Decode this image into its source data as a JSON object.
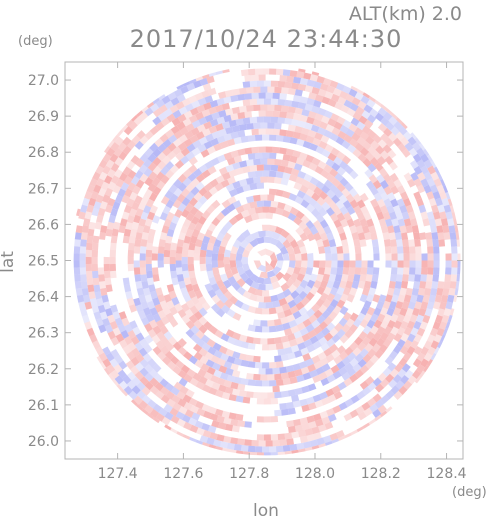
{
  "header": {
    "altitude_label": "ALT(km) 2.0",
    "timestamp": "2017/10/24 23:44:30"
  },
  "chart_data": {
    "type": "heatmap",
    "title": "2017/10/24 23:44:30",
    "subtitle": "ALT(km) 2.0",
    "xlabel": "lon",
    "ylabel": "lat",
    "x_unit": "(deg)",
    "y_unit": "(deg)",
    "xlim": [
      127.24,
      128.45
    ],
    "ylim": [
      25.95,
      27.05
    ],
    "x_ticks": [
      {
        "value": 127.4,
        "label": "127.4"
      },
      {
        "value": 127.6,
        "label": "127.6"
      },
      {
        "value": 127.8,
        "label": "127.8"
      },
      {
        "value": 128.0,
        "label": "128.0"
      },
      {
        "value": 128.2,
        "label": "128.2"
      },
      {
        "value": 128.4,
        "label": "128.4"
      }
    ],
    "y_ticks": [
      {
        "value": 26.0,
        "label": "26.0"
      },
      {
        "value": 26.1,
        "label": "26.1"
      },
      {
        "value": 26.2,
        "label": "26.2"
      },
      {
        "value": 26.3,
        "label": "26.3"
      },
      {
        "value": 26.4,
        "label": "26.4"
      },
      {
        "value": 26.5,
        "label": "26.5"
      },
      {
        "value": 26.6,
        "label": "26.6"
      },
      {
        "value": 26.7,
        "label": "26.7"
      },
      {
        "value": 26.8,
        "label": "26.8"
      },
      {
        "value": 26.9,
        "label": "26.9"
      },
      {
        "value": 27.0,
        "label": "27.0"
      }
    ],
    "radar_center": {
      "lon": 127.85,
      "lat": 26.5
    },
    "radar_coverage_radius_deg_lat": 0.54,
    "color_positive": "#f5a3a3",
    "color_negative": "#a9acf5",
    "color_zero": "#ffffff",
    "grid": false
  }
}
